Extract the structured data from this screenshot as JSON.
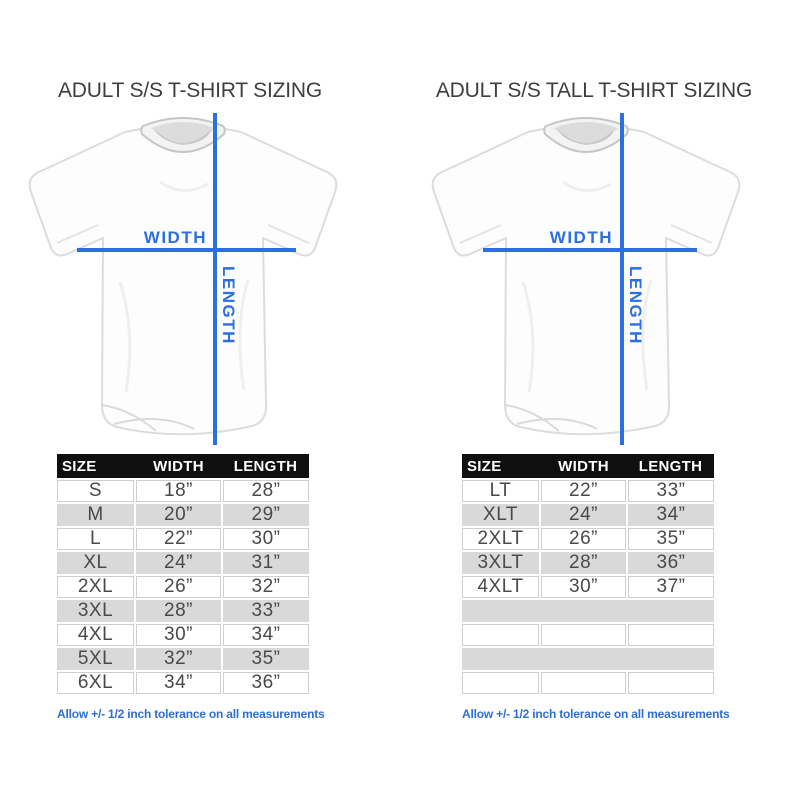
{
  "colors": {
    "accent_blue": "#2b6fe0",
    "note_blue": "#2e6fd1",
    "table_header_bg": "#0f0f0f",
    "row_gray": "#d9d9d9",
    "title_text": "#3f3f3f"
  },
  "panels": [
    {
      "title": "ADULT S/S T-SHIRT SIZING",
      "diagram": {
        "width_label": "WIDTH",
        "length_label": "LENGTH"
      },
      "table": {
        "headers": [
          "SIZE",
          "WIDTH",
          "LENGTH"
        ],
        "rows": [
          [
            "S",
            "18”",
            "28”"
          ],
          [
            "M",
            "20”",
            "29”"
          ],
          [
            "L",
            "22”",
            "30”"
          ],
          [
            "XL",
            "24”",
            "31”"
          ],
          [
            "2XL",
            "26”",
            "32”"
          ],
          [
            "3XL",
            "28”",
            "33”"
          ],
          [
            "4XL",
            "30”",
            "34”"
          ],
          [
            "5XL",
            "32”",
            "35”"
          ],
          [
            "6XL",
            "34”",
            "36”"
          ]
        ],
        "blank_rows": 0
      },
      "note": "Allow +/- 1/2 inch tolerance on all measurements"
    },
    {
      "title": "ADULT S/S TALL T-SHIRT SIZING",
      "diagram": {
        "width_label": "WIDTH",
        "length_label": "LENGTH"
      },
      "table": {
        "headers": [
          "SIZE",
          "WIDTH",
          "LENGTH"
        ],
        "rows": [
          [
            "LT",
            "22”",
            "33”"
          ],
          [
            "XLT",
            "24”",
            "34”"
          ],
          [
            "2XLT",
            "26”",
            "35”"
          ],
          [
            "3XLT",
            "28”",
            "36”"
          ],
          [
            "4XLT",
            "30”",
            "37”"
          ]
        ],
        "blank_rows": 4
      },
      "note": "Allow +/- 1/2 inch tolerance on all measurements"
    }
  ]
}
